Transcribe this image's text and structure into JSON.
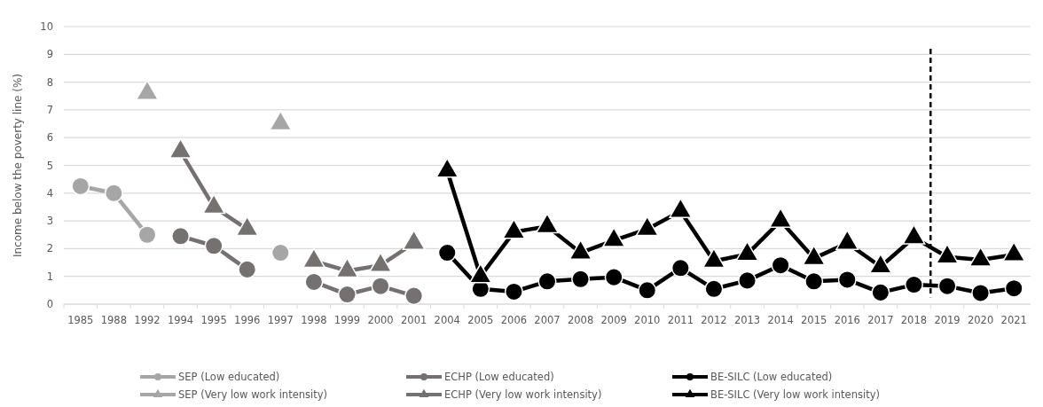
{
  "chart_data": {
    "type": "line",
    "ylabel": "Income below the poverty line (%)",
    "categories": [
      "1985",
      "1988",
      "1992",
      "1994",
      "1995",
      "1996",
      "1997",
      "1998",
      "1999",
      "2000",
      "2001",
      "2004",
      "2005",
      "2006",
      "2007",
      "2008",
      "2009",
      "2010",
      "2011",
      "2012",
      "2013",
      "2014",
      "2015",
      "2016",
      "2017",
      "2018",
      "2019",
      "2020",
      "2021"
    ],
    "series": [
      {
        "name": "SEP (Low educated)",
        "color": "#a6a6a6",
        "marker": "circle",
        "values": [
          4.25,
          4.0,
          2.5,
          null,
          null,
          null,
          1.85,
          null,
          null,
          null,
          null,
          null,
          null,
          null,
          null,
          null,
          null,
          null,
          null,
          null,
          null,
          null,
          null,
          null,
          null,
          null,
          null,
          null,
          null
        ]
      },
      {
        "name": "SEP (Very low work intensity)",
        "type": "scatter",
        "color": "#a6a6a6",
        "marker": "triangle",
        "values": [
          null,
          null,
          7.6,
          null,
          null,
          null,
          6.5,
          null,
          null,
          null,
          null,
          null,
          null,
          null,
          null,
          null,
          null,
          null,
          null,
          null,
          null,
          null,
          null,
          null,
          null,
          null,
          null,
          null,
          null
        ]
      },
      {
        "name": "ECHP (Low educated)",
        "color": "#767171",
        "marker": "circle",
        "values": [
          null,
          null,
          null,
          2.45,
          2.1,
          1.25,
          null,
          0.8,
          0.35,
          0.65,
          0.3,
          null,
          null,
          null,
          null,
          null,
          null,
          null,
          null,
          null,
          null,
          null,
          null,
          null,
          null,
          null,
          null,
          null,
          null
        ]
      },
      {
        "name": "ECHP (Very low work intensity)",
        "color": "#767171",
        "marker": "triangle",
        "values": [
          null,
          null,
          null,
          5.5,
          3.5,
          2.7,
          null,
          1.55,
          1.2,
          1.4,
          2.2,
          null,
          null,
          null,
          null,
          null,
          null,
          null,
          null,
          null,
          null,
          null,
          null,
          null,
          null,
          null,
          null,
          null,
          null
        ]
      },
      {
        "name": "BE-SILC (Low educated)",
        "color": "#000000",
        "marker": "circle",
        "values": [
          null,
          null,
          null,
          null,
          null,
          null,
          null,
          null,
          null,
          null,
          null,
          1.85,
          0.55,
          0.45,
          0.82,
          0.9,
          0.97,
          0.5,
          1.3,
          0.55,
          0.85,
          1.4,
          0.82,
          0.88,
          0.42,
          0.7,
          0.65,
          0.4,
          0.57
        ]
      },
      {
        "name": "BE-SILC (Very low work intensity)",
        "color": "#000000",
        "marker": "triangle",
        "values": [
          null,
          null,
          null,
          null,
          null,
          null,
          null,
          null,
          null,
          null,
          null,
          4.8,
          1.0,
          2.6,
          2.8,
          1.85,
          2.3,
          2.7,
          3.35,
          1.55,
          1.8,
          3.0,
          1.65,
          2.2,
          1.35,
          2.4,
          1.7,
          1.6,
          1.78
        ]
      }
    ],
    "ref_lines": [
      {
        "axis": "x",
        "value": "2019",
        "color": "#000000",
        "line_style": "dashed"
      }
    ],
    "ylim": [
      0,
      10
    ],
    "yticks": [
      0,
      1,
      2,
      3,
      4,
      5,
      6,
      7,
      8,
      9,
      10
    ],
    "grid": "y",
    "legend": "bottom"
  }
}
